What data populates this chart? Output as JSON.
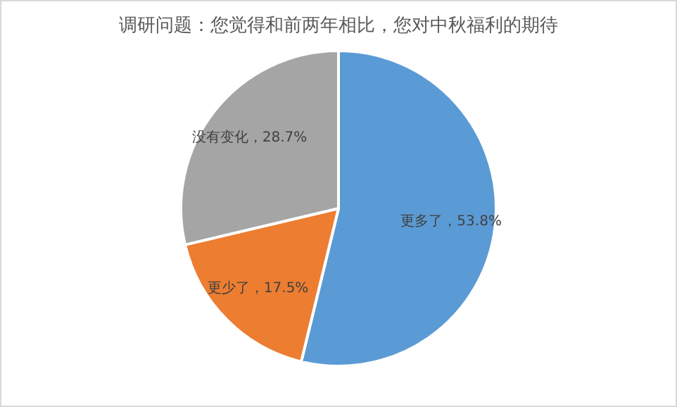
{
  "chart_data": {
    "type": "pie",
    "title": "调研问题：您觉得和前两年相比，您对中秋福利的期待",
    "categories": [
      "更多了",
      "更少了",
      "没有变化"
    ],
    "values": [
      53.8,
      17.5,
      28.7
    ],
    "colors": [
      "#5b9bd5",
      "#ed7d31",
      "#a5a5a5"
    ],
    "value_labels": [
      "53.8%",
      "17.5%",
      "28.7%"
    ],
    "legend": false
  }
}
